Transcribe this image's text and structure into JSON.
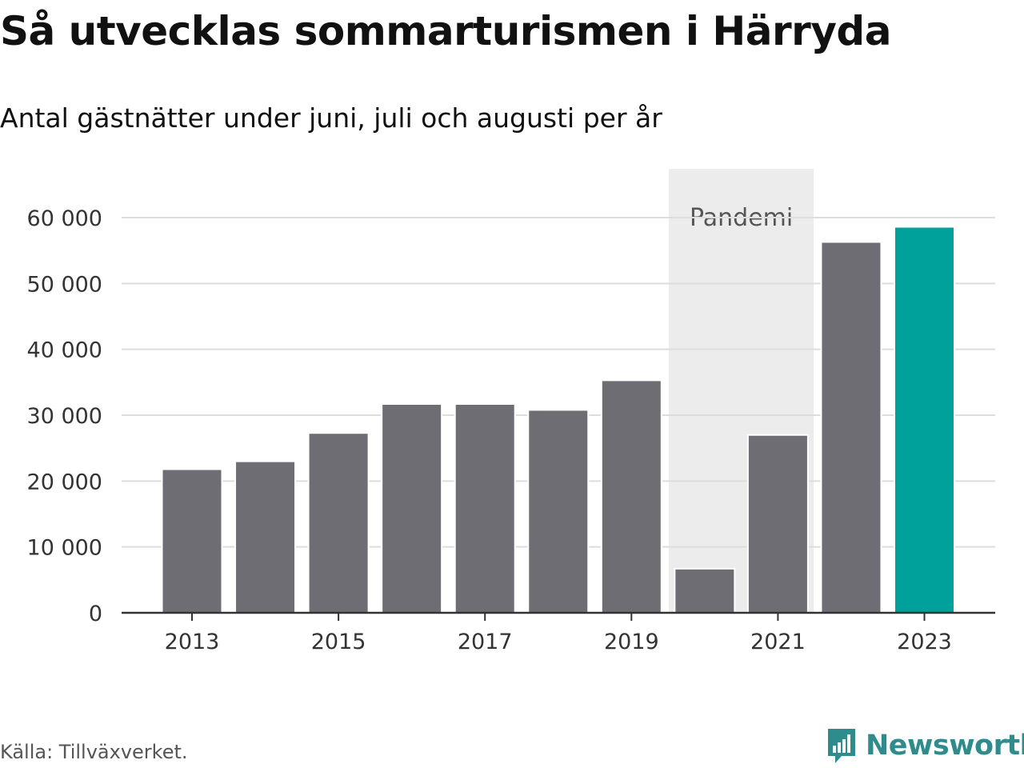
{
  "header": {
    "title": "Så utvecklas sommarturismen i Härryda",
    "subtitle": "Antal gästnätter under juni, juli och augusti per år"
  },
  "footer": {
    "source": "Källa: Tillväxverket.",
    "brand": "Newsworthy"
  },
  "colors": {
    "bar": "#6e6d74",
    "highlight": "#00a19a",
    "band": "#ececec",
    "grid": "#dddddd",
    "axis": "#333333",
    "brand": "#2e8c8c"
  },
  "chart_data": {
    "type": "bar",
    "categories": [
      "2013",
      "2014",
      "2015",
      "2016",
      "2017",
      "2018",
      "2019",
      "2020",
      "2021",
      "2022",
      "2023"
    ],
    "values": [
      21800,
      23000,
      27300,
      31700,
      31700,
      30800,
      35300,
      6700,
      27000,
      56300,
      58600
    ],
    "highlight_category": "2023",
    "x_tick_labels": [
      "2013",
      "2015",
      "2017",
      "2019",
      "2021",
      "2023"
    ],
    "y_ticks": [
      0,
      10000,
      20000,
      30000,
      40000,
      50000,
      60000
    ],
    "y_tick_labels": [
      "0",
      "10 000",
      "20 000",
      "30 000",
      "40 000",
      "50 000",
      "60 000"
    ],
    "ylim": [
      0,
      60000
    ],
    "xlabel": "",
    "ylabel": "",
    "grid": true,
    "annotation": {
      "label": "Pandemi",
      "from": "2020",
      "to": "2021"
    }
  }
}
